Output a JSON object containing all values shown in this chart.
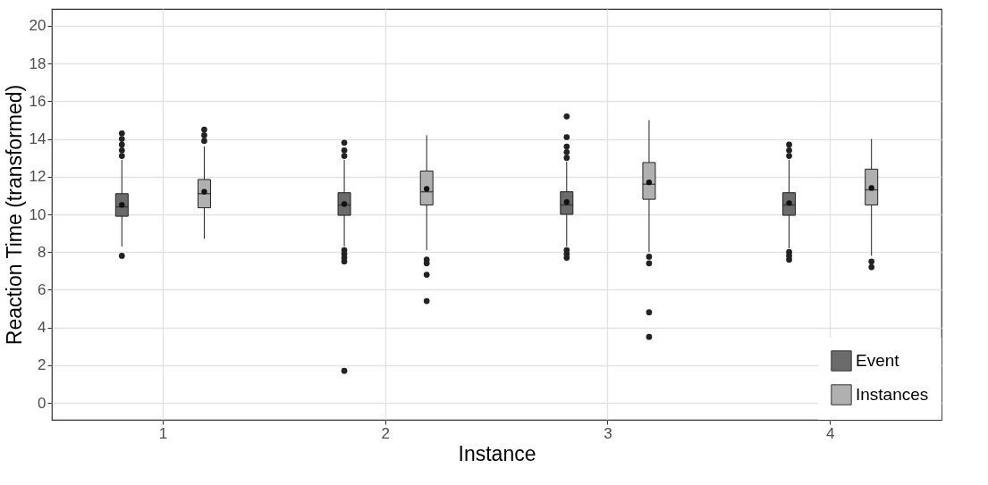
{
  "chart_data": {
    "type": "box",
    "xlabel": "Instance",
    "ylabel": "Reaction Time (transformed)",
    "categories": [
      "1",
      "2",
      "3",
      "4"
    ],
    "ylim": [
      -0.9,
      20.9
    ],
    "yticks": [
      0,
      2,
      4,
      6,
      8,
      10,
      12,
      14,
      16,
      18,
      20
    ],
    "grid": true,
    "legend": "bottom right",
    "series": [
      {
        "name": "Event",
        "color": "#6b6b6b",
        "boxes": [
          {
            "low": 8.3,
            "q1": 9.9,
            "median": 10.4,
            "q3": 11.1,
            "high": 12.9,
            "mean": 10.5,
            "outliers": [
              7.8,
              13.1,
              13.4,
              13.7,
              14.0,
              14.3
            ]
          },
          {
            "low": 8.3,
            "q1": 9.95,
            "median": 10.5,
            "q3": 11.15,
            "high": 12.9,
            "mean": 10.55,
            "outliers": [
              1.7,
              7.5,
              7.7,
              7.9,
              8.1,
              13.1,
              13.4,
              13.8
            ]
          },
          {
            "low": 8.3,
            "q1": 10.0,
            "median": 10.5,
            "q3": 11.2,
            "high": 12.8,
            "mean": 10.65,
            "outliers": [
              7.7,
              7.9,
              8.1,
              13.0,
              13.3,
              13.6,
              14.1,
              15.2
            ]
          },
          {
            "low": 8.2,
            "q1": 9.95,
            "median": 10.5,
            "q3": 11.15,
            "high": 12.9,
            "mean": 10.6,
            "outliers": [
              7.6,
              7.8,
              8.0,
              13.1,
              13.4,
              13.7
            ]
          }
        ]
      },
      {
        "name": "Instances",
        "color": "#b0b0b0",
        "boxes": [
          {
            "low": 8.7,
            "q1": 10.35,
            "median": 11.1,
            "q3": 11.85,
            "high": 13.6,
            "mean": 11.2,
            "outliers": [
              13.9,
              14.2,
              14.5
            ]
          },
          {
            "low": 8.1,
            "q1": 10.5,
            "median": 11.2,
            "q3": 12.3,
            "high": 14.2,
            "mean": 11.35,
            "outliers": [
              5.4,
              6.8,
              7.4,
              7.6
            ]
          },
          {
            "low": 8.0,
            "q1": 10.8,
            "median": 11.6,
            "q3": 12.75,
            "high": 15.0,
            "mean": 11.7,
            "outliers": [
              3.5,
              4.8,
              7.4,
              7.75
            ]
          },
          {
            "low": 7.8,
            "q1": 10.5,
            "median": 11.3,
            "q3": 12.4,
            "high": 14.0,
            "mean": 11.4,
            "outliers": [
              7.2,
              7.5
            ]
          }
        ]
      }
    ]
  }
}
